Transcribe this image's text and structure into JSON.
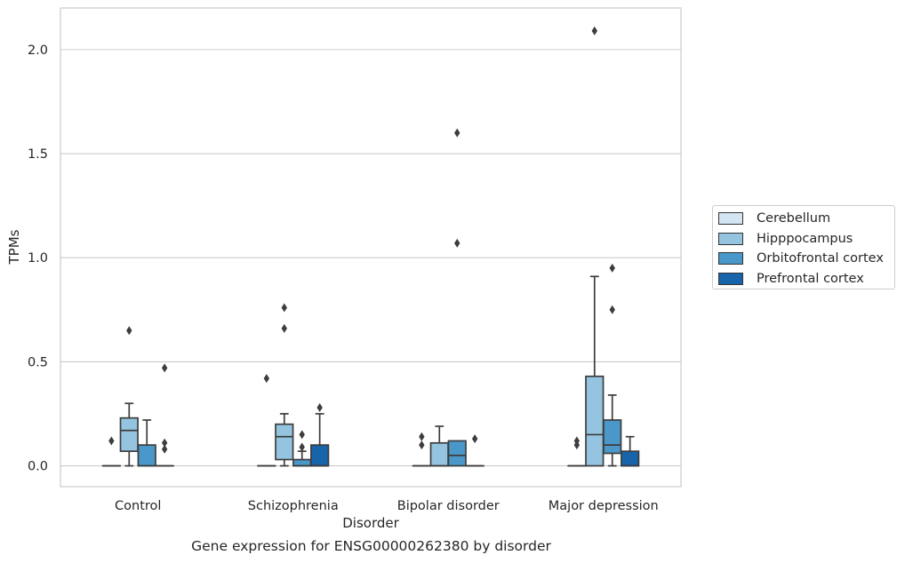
{
  "chart_data": {
    "type": "box",
    "caption": "Gene expression for ENSG00000262380 by disorder",
    "xlabel": "Disorder",
    "ylabel": "TPMs",
    "ylim": [
      -0.1,
      2.2
    ],
    "yticks": [
      "0.0",
      "0.5",
      "1.0",
      "1.5",
      "2.0"
    ],
    "grid": "horizontal",
    "legend_position": "right",
    "categories": [
      "Control",
      "Schizophrenia",
      "Bipolar disorder",
      "Major depression"
    ],
    "series": [
      {
        "name": "Cerebellum",
        "color": "#d3e4f3",
        "boxes": [
          {
            "min": 0,
            "q1": 0,
            "median": 0,
            "q3": 0,
            "max": 0,
            "outliers": [
              0.12
            ]
          },
          {
            "min": 0,
            "q1": 0,
            "median": 0,
            "q3": 0,
            "max": 0,
            "outliers": [
              0.42
            ]
          },
          {
            "min": 0,
            "q1": 0,
            "median": 0,
            "q3": 0,
            "max": 0,
            "outliers": [
              0.1,
              0.14
            ]
          },
          {
            "min": 0,
            "q1": 0,
            "median": 0,
            "q3": 0,
            "max": 0,
            "outliers": [
              0.1,
              0.12
            ]
          }
        ]
      },
      {
        "name": "Hipppocampus",
        "color": "#94c4df",
        "boxes": [
          {
            "min": 0,
            "q1": 0.07,
            "median": 0.17,
            "q3": 0.23,
            "max": 0.3,
            "outliers": [
              0.65
            ]
          },
          {
            "min": 0,
            "q1": 0.03,
            "median": 0.14,
            "q3": 0.2,
            "max": 0.25,
            "outliers": [
              0.66,
              0.76
            ]
          },
          {
            "min": 0,
            "q1": 0,
            "median": 0,
            "q3": 0.11,
            "max": 0.19,
            "outliers": []
          },
          {
            "min": 0,
            "q1": 0,
            "median": 0.15,
            "q3": 0.43,
            "max": 0.91,
            "outliers": [
              2.09
            ]
          }
        ]
      },
      {
        "name": "Orbitofrontal cortex",
        "color": "#4a98c9",
        "boxes": [
          {
            "min": 0,
            "q1": 0,
            "median": 0,
            "q3": 0.1,
            "max": 0.22,
            "outliers": []
          },
          {
            "min": 0,
            "q1": 0,
            "median": 0,
            "q3": 0.03,
            "max": 0.07,
            "outliers": [
              0.09,
              0.15
            ]
          },
          {
            "min": 0,
            "q1": 0,
            "median": 0.05,
            "q3": 0.12,
            "max": 0.12,
            "outliers": [
              1.07,
              1.6
            ]
          },
          {
            "min": 0,
            "q1": 0.06,
            "median": 0.1,
            "q3": 0.22,
            "max": 0.34,
            "outliers": [
              0.75,
              0.95
            ]
          }
        ]
      },
      {
        "name": "Prefrontal cortex",
        "color": "#1764ab",
        "boxes": [
          {
            "min": 0,
            "q1": 0,
            "median": 0,
            "q3": 0,
            "max": 0,
            "outliers": [
              0.08,
              0.11,
              0.47
            ]
          },
          {
            "min": 0,
            "q1": 0,
            "median": 0,
            "q3": 0.1,
            "max": 0.25,
            "outliers": [
              0.28
            ]
          },
          {
            "min": 0,
            "q1": 0,
            "median": 0,
            "q3": 0,
            "max": 0,
            "outliers": [
              0.13
            ]
          },
          {
            "min": 0,
            "q1": 0,
            "median": 0,
            "q3": 0.07,
            "max": 0.14,
            "outliers": []
          }
        ]
      }
    ]
  }
}
